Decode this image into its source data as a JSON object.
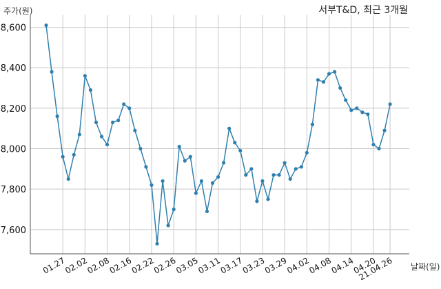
{
  "chart_data": {
    "type": "line",
    "title": "서부T&D, 최근 3개월",
    "ylabel": "주가(원)",
    "xlabel": "날짜(일)",
    "ylim": [
      7480,
      8660
    ],
    "y_ticks": [
      7600,
      7800,
      8000,
      8200,
      8400,
      8600
    ],
    "y_tick_labels": [
      "7,600",
      "7,800",
      "8,000",
      "8,200",
      "8,400",
      "8,600"
    ],
    "x_tick_labels": [
      "01.27",
      "02.02",
      "02.08",
      "02.16",
      "02.22",
      "02.26",
      "03.05",
      "03.11",
      "03.17",
      "03.23",
      "03.29",
      "04.02",
      "04.08",
      "04.14",
      "04.20",
      "21.04.26"
    ],
    "x_tick_index": [
      3,
      7,
      11,
      15,
      19,
      23,
      27,
      31,
      35,
      39,
      43,
      47,
      51,
      55,
      59,
      62
    ],
    "grid": true,
    "color": "#2f7fae",
    "series": [
      {
        "values": [
          8610,
          8380,
          8160,
          7960,
          7850,
          7970,
          8070,
          8360,
          8290,
          8130,
          8060,
          8020,
          8130,
          8140,
          8220,
          8200,
          8090,
          8000,
          7910,
          7820,
          7530,
          7840,
          7620,
          7700,
          8010,
          7940,
          7960,
          7780,
          7840,
          7690,
          7830,
          7860,
          7930,
          8100,
          8030,
          7990,
          7870,
          7900,
          7740,
          7840,
          7750,
          7870,
          7870,
          7930,
          7850,
          7900,
          7910,
          7980,
          8120,
          8340,
          8330,
          8370,
          8380,
          8300,
          8240,
          8190,
          8200,
          8180,
          8170,
          8020,
          8000,
          8090,
          8220
        ]
      }
    ]
  }
}
